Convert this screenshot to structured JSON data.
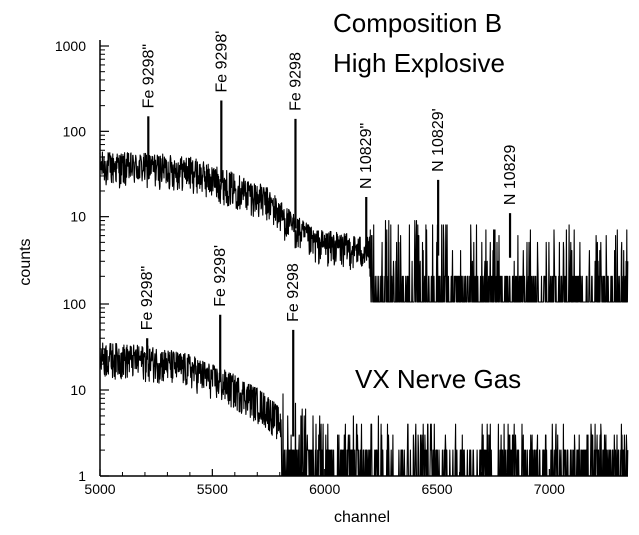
{
  "chart_data": {
    "type": "line",
    "xlabel": "channel",
    "ylabel": "counts",
    "xlim": [
      5000,
      7350
    ],
    "x_ticks": [
      "5000",
      "5500",
      "6000",
      "6500",
      "7000"
    ],
    "x_tick_values": [
      5000,
      5500,
      6000,
      6500,
      7000
    ],
    "y_scale": "log",
    "grid": false,
    "panels": [
      {
        "id": "top",
        "title_lines": [
          "Composition B",
          "High Explosive"
        ],
        "ylim": [
          1,
          1000
        ],
        "y_ticks": [
          "10",
          "100",
          "1000"
        ],
        "y_tick_values": [
          10,
          100,
          1000
        ],
        "baseline_profile": [
          [
            5000,
            40
          ],
          [
            5250,
            38
          ],
          [
            5400,
            35
          ],
          [
            5550,
            25
          ],
          [
            5650,
            20
          ],
          [
            5750,
            15
          ],
          [
            5850,
            8
          ],
          [
            5950,
            5
          ],
          [
            6200,
            4
          ],
          [
            6500,
            3.5
          ],
          [
            7350,
            3
          ]
        ],
        "peaks": [
          {
            "label": "Fe 9298\"",
            "channel": 5215,
            "counts": 150
          },
          {
            "label": "Fe 9298'",
            "channel": 5540,
            "counts": 230
          },
          {
            "label": "Fe 9298",
            "channel": 5870,
            "counts": 140
          },
          {
            "label": "N 10829\"",
            "channel": 6185,
            "counts": 17
          },
          {
            "label": "N 10829'",
            "channel": 6505,
            "counts": 27
          },
          {
            "label": "N 10829",
            "channel": 6825,
            "counts": 11
          }
        ]
      },
      {
        "id": "bottom",
        "title_lines": [
          "VX Nerve Gas"
        ],
        "ylim": [
          1,
          100
        ],
        "y_ticks": [
          "1",
          "10",
          "100"
        ],
        "y_tick_values": [
          1,
          10,
          100
        ],
        "baseline_profile": [
          [
            5000,
            25
          ],
          [
            5250,
            22
          ],
          [
            5400,
            18
          ],
          [
            5550,
            12
          ],
          [
            5650,
            9
          ],
          [
            5750,
            6
          ],
          [
            5850,
            3
          ],
          [
            5950,
            2
          ],
          [
            6300,
            1.5
          ],
          [
            7350,
            1.2
          ]
        ],
        "peaks": [
          {
            "label": "Fe 9298\"",
            "channel": 5210,
            "counts": 40
          },
          {
            "label": "Fe 9298'",
            "channel": 5535,
            "counts": 75
          },
          {
            "label": "Fe 9298",
            "channel": 5860,
            "counts": 50
          }
        ]
      }
    ]
  }
}
